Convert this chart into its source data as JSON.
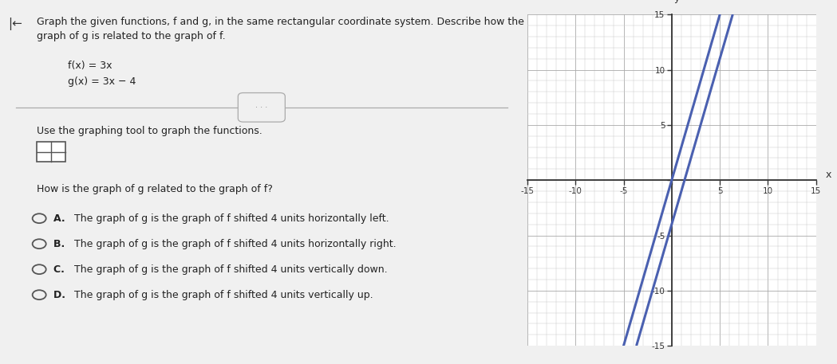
{
  "f_slope": 3,
  "f_intercept": 0,
  "g_slope": 3,
  "g_intercept": -4,
  "xlim": [
    -15,
    15
  ],
  "ylim": [
    -15,
    15
  ],
  "x_tick_interval": 5,
  "y_tick_interval": 5,
  "x_minor_interval": 1,
  "y_minor_interval": 1,
  "line_color": "#4a60b0",
  "line_width": 2.2,
  "grid_major_color": "#aaaaaa",
  "grid_minor_color": "#cccccc",
  "axis_color": "#333333",
  "background_color": "#ffffff",
  "panel_bg": "#f0f0f0",
  "header_color": "#2ab0c5",
  "xlabel": "x",
  "ylabel": "y",
  "question_text_line1": "Graph the given functions, f and g, in the same rectangular coordinate system. Describe how the",
  "question_text_line2": "graph of g is related to the graph of f.",
  "fx_text": "f(x) = 3x",
  "gx_text": "g(x) = 3x − 4",
  "use_tool_text": "Use the graphing tool to graph the functions.",
  "answer_question": "How is the graph of g related to the graph of f?",
  "option_a": "A.  The graph of g is the graph of f shifted 4 units horizontally left.",
  "option_b": "B.  The graph of g is the graph of f shifted 4 units horizontally right.",
  "option_c": "C.  The graph of g is the graph of f shifted 4 units vertically down.",
  "option_d": "D.  The graph of g is the graph of f shifted 4 units vertically up."
}
